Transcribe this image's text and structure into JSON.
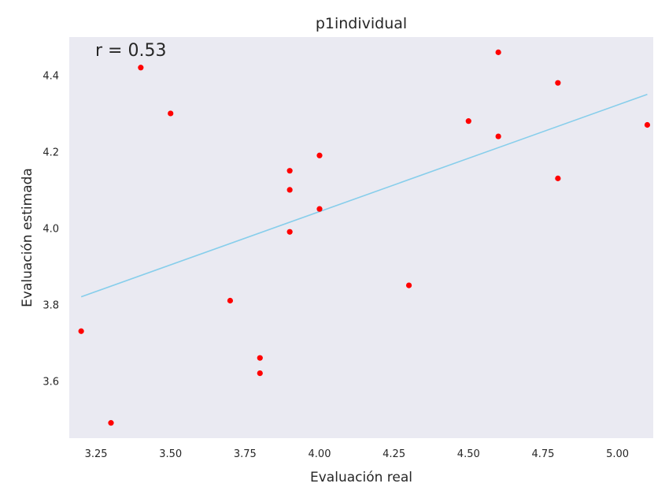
{
  "chart_data": {
    "type": "scatter",
    "title": "p1individual",
    "xlabel": "Evaluación real",
    "ylabel": "Evaluación estimada",
    "annotation": "r = 0.53",
    "xlim": [
      3.16,
      5.12
    ],
    "ylim": [
      3.45,
      4.5
    ],
    "xticks": [
      3.25,
      3.5,
      3.75,
      4.0,
      4.25,
      4.5,
      4.75,
      5.0
    ],
    "xtick_labels": [
      "3.25",
      "3.50",
      "3.75",
      "4.00",
      "4.25",
      "4.50",
      "4.75",
      "5.00"
    ],
    "yticks": [
      3.6,
      3.8,
      4.0,
      4.2,
      4.4
    ],
    "ytick_labels": [
      "3.6",
      "3.8",
      "4.0",
      "4.2",
      "4.4"
    ],
    "grid": false,
    "background_color": "#eaeaf2",
    "points": {
      "color": "#ff0000",
      "x": [
        3.2,
        3.3,
        3.4,
        3.5,
        3.7,
        3.8,
        3.8,
        3.9,
        3.9,
        3.9,
        4.0,
        4.0,
        4.3,
        4.5,
        4.6,
        4.6,
        4.8,
        4.8,
        5.1
      ],
      "y": [
        3.73,
        3.49,
        4.42,
        4.3,
        3.81,
        3.66,
        3.62,
        4.15,
        4.1,
        3.99,
        4.19,
        4.05,
        3.85,
        4.28,
        4.46,
        4.24,
        4.38,
        4.13,
        4.27
      ]
    },
    "fit_line": {
      "color": "#87ceeb",
      "x": [
        3.2,
        5.1
      ],
      "y": [
        3.82,
        4.35
      ]
    }
  }
}
